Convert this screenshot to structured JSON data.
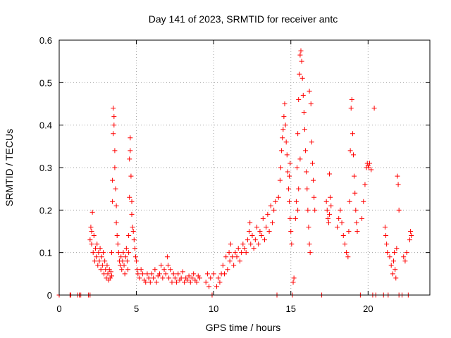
{
  "chart_data": {
    "type": "scatter",
    "title": "Day 141 of 2023, SRMTID for receiver antc",
    "xlabel": "GPS time / hours",
    "ylabel": "SRMTID / TECUs",
    "xlim": [
      0,
      24
    ],
    "ylim": [
      0,
      0.6
    ],
    "xticks": [
      0,
      5,
      10,
      15,
      20
    ],
    "yticks": [
      0,
      0.1,
      0.2,
      0.3,
      0.4,
      0.5,
      0.6
    ],
    "xtick_labels": [
      "0",
      "5",
      "10",
      "15",
      "20"
    ],
    "ytick_labels": [
      "0",
      "0.1",
      "0.2",
      "0.3",
      "0.4",
      "0.5",
      "0.6"
    ],
    "grid": true,
    "marker": "+",
    "color": "#ff0000",
    "series": [
      {
        "name": "SRMTID",
        "points": [
          [
            0.0,
            0
          ],
          [
            0.7,
            0
          ],
          [
            0.75,
            0
          ],
          [
            1.2,
            0
          ],
          [
            1.3,
            0
          ],
          [
            1.4,
            0
          ],
          [
            1.9,
            0
          ],
          [
            2.0,
            0
          ],
          [
            2.0,
            0.13
          ],
          [
            2.05,
            0.16
          ],
          [
            2.1,
            0.12
          ],
          [
            2.1,
            0.15
          ],
          [
            2.15,
            0.195
          ],
          [
            2.2,
            0.1
          ],
          [
            2.25,
            0.14
          ],
          [
            2.3,
            0.08
          ],
          [
            2.35,
            0.11
          ],
          [
            2.4,
            0.09
          ],
          [
            2.45,
            0.12
          ],
          [
            2.5,
            0.07
          ],
          [
            2.55,
            0.1
          ],
          [
            2.6,
            0.08
          ],
          [
            2.65,
            0.11
          ],
          [
            2.7,
            0.06
          ],
          [
            2.75,
            0.09
          ],
          [
            2.8,
            0.07
          ],
          [
            2.85,
            0.1
          ],
          [
            2.9,
            0.05
          ],
          [
            2.95,
            0.08
          ],
          [
            3.0,
            0.06
          ],
          [
            3.05,
            0.04
          ],
          [
            3.1,
            0.07
          ],
          [
            3.15,
            0.05
          ],
          [
            3.2,
            0.035
          ],
          [
            3.25,
            0.06
          ],
          [
            3.3,
            0.04
          ],
          [
            3.35,
            0.055
          ],
          [
            3.4,
            0.045
          ],
          [
            3.4,
            0.1
          ],
          [
            3.45,
            0.22
          ],
          [
            3.45,
            0.27
          ],
          [
            3.5,
            0.38
          ],
          [
            3.5,
            0.44
          ],
          [
            3.55,
            0.42
          ],
          [
            3.55,
            0.4
          ],
          [
            3.6,
            0.34
          ],
          [
            3.6,
            0.3
          ],
          [
            3.65,
            0.25
          ],
          [
            3.7,
            0.21
          ],
          [
            3.7,
            0.17
          ],
          [
            3.75,
            0.14
          ],
          [
            3.8,
            0.12
          ],
          [
            3.85,
            0.1
          ],
          [
            3.9,
            0.08
          ],
          [
            3.95,
            0.07
          ],
          [
            4.0,
            0.09
          ],
          [
            4.05,
            0.06
          ],
          [
            4.1,
            0.08
          ],
          [
            4.15,
            0.1
          ],
          [
            4.2,
            0.07
          ],
          [
            4.25,
            0.05
          ],
          [
            4.3,
            0.09
          ],
          [
            4.35,
            0.11
          ],
          [
            4.4,
            0.08
          ],
          [
            4.45,
            0.06
          ],
          [
            4.5,
            0.1
          ],
          [
            4.5,
            0.14
          ],
          [
            4.55,
            0.23
          ],
          [
            4.55,
            0.32
          ],
          [
            4.6,
            0.37
          ],
          [
            4.6,
            0.34
          ],
          [
            4.65,
            0.28
          ],
          [
            4.7,
            0.22
          ],
          [
            4.7,
            0.19
          ],
          [
            4.75,
            0.16
          ],
          [
            4.8,
            0.15
          ],
          [
            4.85,
            0.13
          ],
          [
            4.9,
            0.11
          ],
          [
            4.95,
            0.09
          ],
          [
            5.0,
            0.08
          ],
          [
            5.05,
            0.06
          ],
          [
            5.1,
            0.05
          ],
          [
            5.2,
            0.04
          ],
          [
            5.3,
            0.06
          ],
          [
            5.4,
            0.05
          ],
          [
            5.5,
            0.035
          ],
          [
            5.6,
            0.03
          ],
          [
            5.7,
            0.05
          ],
          [
            5.8,
            0.04
          ],
          [
            5.9,
            0.03
          ],
          [
            6.0,
            0.05
          ],
          [
            6.1,
            0.04
          ],
          [
            6.2,
            0.06
          ],
          [
            6.3,
            0.03
          ],
          [
            6.4,
            0.045
          ],
          [
            6.5,
            0.05
          ],
          [
            6.6,
            0.07
          ],
          [
            6.7,
            0.04
          ],
          [
            6.8,
            0.06
          ],
          [
            6.9,
            0.05
          ],
          [
            7.0,
            0.09
          ],
          [
            7.05,
            0.07
          ],
          [
            7.1,
            0.04
          ],
          [
            7.2,
            0.06
          ],
          [
            7.3,
            0.03
          ],
          [
            7.4,
            0.05
          ],
          [
            7.5,
            0.04
          ],
          [
            7.6,
            0.03
          ],
          [
            7.7,
            0.05
          ],
          [
            7.8,
            0.035
          ],
          [
            7.9,
            0.04
          ],
          [
            8.0,
            0.055
          ],
          [
            8.1,
            0.03
          ],
          [
            8.2,
            0.04
          ],
          [
            8.3,
            0.035
          ],
          [
            8.4,
            0.045
          ],
          [
            8.5,
            0.03
          ],
          [
            8.6,
            0.04
          ],
          [
            8.7,
            0.05
          ],
          [
            8.8,
            0.035
          ],
          [
            8.9,
            0.03
          ],
          [
            9.0,
            0.045
          ],
          [
            9.1,
            0.04
          ],
          [
            9.5,
            0.03
          ],
          [
            9.6,
            0.05
          ],
          [
            9.7,
            0.02
          ],
          [
            9.8,
            0.04
          ],
          [
            9.9,
            0
          ],
          [
            10.0,
            0.05
          ],
          [
            10.2,
            0.02
          ],
          [
            10.3,
            0.04
          ],
          [
            10.4,
            0.03
          ],
          [
            10.5,
            0.05
          ],
          [
            10.6,
            0.07
          ],
          [
            10.7,
            0.05
          ],
          [
            10.8,
            0.09
          ],
          [
            10.9,
            0.06
          ],
          [
            11.0,
            0.1
          ],
          [
            11.05,
            0.08
          ],
          [
            11.1,
            0.12
          ],
          [
            11.2,
            0.09
          ],
          [
            11.3,
            0.07
          ],
          [
            11.4,
            0.1
          ],
          [
            11.5,
            0.09
          ],
          [
            11.6,
            0.11
          ],
          [
            11.7,
            0.08
          ],
          [
            11.8,
            0.1
          ],
          [
            11.9,
            0.12
          ],
          [
            12.0,
            0.11
          ],
          [
            12.1,
            0.1
          ],
          [
            12.2,
            0.13
          ],
          [
            12.3,
            0.15
          ],
          [
            12.35,
            0.17
          ],
          [
            12.4,
            0.12
          ],
          [
            12.5,
            0.14
          ],
          [
            12.6,
            0.11
          ],
          [
            12.7,
            0.13
          ],
          [
            12.8,
            0.16
          ],
          [
            12.9,
            0.12
          ],
          [
            13.0,
            0.15
          ],
          [
            13.1,
            0.14
          ],
          [
            13.2,
            0.18
          ],
          [
            13.3,
            0.13
          ],
          [
            13.4,
            0.16
          ],
          [
            13.5,
            0.19
          ],
          [
            13.6,
            0.15
          ],
          [
            13.7,
            0.21
          ],
          [
            13.8,
            0.17
          ],
          [
            13.9,
            0.2
          ],
          [
            14.0,
            0.22
          ],
          [
            14.1,
            0.0
          ],
          [
            14.2,
            0.23
          ],
          [
            14.3,
            0.27
          ],
          [
            14.35,
            0.3
          ],
          [
            14.4,
            0.34
          ],
          [
            14.45,
            0.37
          ],
          [
            14.5,
            0.39
          ],
          [
            14.55,
            0.42
          ],
          [
            14.6,
            0.45
          ],
          [
            14.65,
            0.4
          ],
          [
            14.7,
            0.36
          ],
          [
            14.75,
            0.33
          ],
          [
            14.8,
            0.29
          ],
          [
            14.85,
            0.25
          ],
          [
            14.9,
            0.22
          ],
          [
            14.95,
            0.18
          ],
          [
            15.0,
            0.15
          ],
          [
            15.05,
            0.12
          ],
          [
            14.9,
            0.28
          ],
          [
            14.95,
            0.31
          ],
          [
            15.1,
            0.0
          ],
          [
            15.15,
            0.03
          ],
          [
            15.2,
            0.04
          ],
          [
            15.3,
            0.18
          ],
          [
            15.35,
            0.22
          ],
          [
            15.4,
            0.3
          ],
          [
            15.45,
            0.38
          ],
          [
            15.5,
            0.46
          ],
          [
            15.55,
            0.52
          ],
          [
            15.6,
            0.565
          ],
          [
            15.65,
            0.575
          ],
          [
            15.7,
            0.55
          ],
          [
            15.75,
            0.51
          ],
          [
            15.8,
            0.47
          ],
          [
            15.85,
            0.43
          ],
          [
            15.9,
            0.39
          ],
          [
            15.95,
            0.34
          ],
          [
            16.0,
            0.29
          ],
          [
            16.05,
            0.25
          ],
          [
            16.1,
            0.2
          ],
          [
            16.15,
            0.16
          ],
          [
            16.2,
            0.12
          ],
          [
            16.25,
            0.1
          ],
          [
            15.45,
            0.2
          ],
          [
            15.5,
            0.25
          ],
          [
            15.6,
            0.32
          ],
          [
            16.2,
            0.48
          ],
          [
            16.3,
            0.45
          ],
          [
            16.35,
            0.36
          ],
          [
            16.4,
            0.31
          ],
          [
            16.45,
            0.27
          ],
          [
            16.5,
            0.23
          ],
          [
            16.55,
            0.2
          ],
          [
            17.0,
            0.0
          ],
          [
            17.3,
            0.22
          ],
          [
            17.35,
            0.2
          ],
          [
            17.4,
            0.18
          ],
          [
            17.45,
            0.17
          ],
          [
            17.5,
            0.19
          ],
          [
            17.55,
            0.23
          ],
          [
            17.6,
            0.21
          ],
          [
            17.5,
            0.285
          ],
          [
            18.0,
            0.16
          ],
          [
            18.1,
            0.18
          ],
          [
            18.2,
            0.2
          ],
          [
            18.3,
            0.17
          ],
          [
            18.4,
            0.14
          ],
          [
            18.5,
            0.12
          ],
          [
            18.6,
            0.1
          ],
          [
            18.7,
            0.09
          ],
          [
            18.75,
            0.15
          ],
          [
            18.8,
            0.22
          ],
          [
            18.85,
            0.34
          ],
          [
            18.9,
            0.44
          ],
          [
            18.95,
            0.46
          ],
          [
            19.0,
            0.38
          ],
          [
            19.05,
            0.33
          ],
          [
            19.1,
            0.28
          ],
          [
            19.15,
            0.24
          ],
          [
            19.2,
            0.2
          ],
          [
            19.25,
            0.17
          ],
          [
            19.3,
            0.15
          ],
          [
            19.5,
            0.0
          ],
          [
            19.6,
            0.18
          ],
          [
            19.7,
            0.22
          ],
          [
            19.8,
            0.26
          ],
          [
            19.9,
            0.3
          ],
          [
            19.95,
            0.31
          ],
          [
            20.0,
            0.305
          ],
          [
            20.05,
            0.3
          ],
          [
            20.1,
            0.31
          ],
          [
            20.2,
            0.295
          ],
          [
            20.3,
            0.0
          ],
          [
            20.4,
            0.44
          ],
          [
            20.5,
            0.0
          ],
          [
            21.0,
            0.0
          ],
          [
            21.1,
            0.16
          ],
          [
            21.15,
            0.14
          ],
          [
            21.2,
            0.12
          ],
          [
            21.25,
            0.1
          ],
          [
            21.3,
            0.0
          ],
          [
            21.4,
            0.09
          ],
          [
            21.5,
            0.07
          ],
          [
            21.6,
            0.05
          ],
          [
            21.65,
            0.08
          ],
          [
            21.7,
            0.1
          ],
          [
            21.75,
            0.06
          ],
          [
            21.8,
            0.04
          ],
          [
            21.85,
            0.11
          ],
          [
            21.9,
            0.28
          ],
          [
            21.95,
            0.26
          ],
          [
            22.0,
            0.2
          ],
          [
            22.0,
            0.0
          ],
          [
            22.2,
            0.0
          ],
          [
            22.3,
            0.09
          ],
          [
            22.4,
            0.08
          ],
          [
            22.5,
            0.1
          ],
          [
            22.6,
            0.0
          ],
          [
            22.7,
            0.13
          ],
          [
            22.75,
            0.15
          ],
          [
            22.8,
            0.14
          ]
        ]
      }
    ]
  }
}
